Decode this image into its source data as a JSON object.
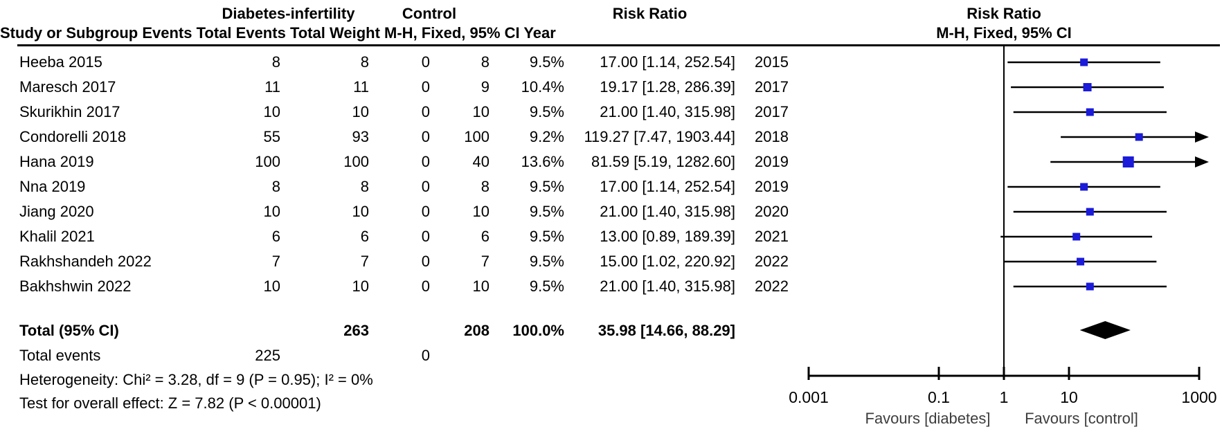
{
  "header": {
    "group_exp": "Diabetes-infertility",
    "group_ctrl": "Control",
    "study_col": "Study or Subgroup",
    "events_col": "Events",
    "total_col": "Total",
    "weight_col": "Weight",
    "effect_col_line1": "Risk Ratio",
    "effect_col_line2": "M-H, Fixed, 95% CI",
    "year_col": "Year",
    "plot_line1": "Risk Ratio",
    "plot_line2": "M-H, Fixed, 95% CI"
  },
  "footer": {
    "total_label": "Total (95% CI)",
    "total_events_label": "Total events",
    "heterogeneity": "Heterogeneity: Chi² = 3.28, df = 9 (P = 0.95); I² = 0%",
    "overall_effect": "Test for overall effect: Z = 7.82 (P < 0.00001)"
  },
  "totals_display": {
    "total_exp": "263",
    "total_ctrl": "208",
    "weight": "100.0%",
    "ci_label": "35.98 [14.66, 88.29]",
    "events_exp": "225",
    "events_ctrl": "0"
  },
  "colors": {
    "marker_blue": "#1b1bd9",
    "line_black": "#000000",
    "favours_text": "#3d3d3d"
  },
  "chart_data": {
    "type": "scatter",
    "subtype": "forest-plot-meta-analysis",
    "effect_measure": "Risk Ratio (M-H, Fixed, 95% CI)",
    "x_scale": "log10",
    "x_range": [
      0.001,
      1000
    ],
    "x_ticks": [
      "0.001",
      "0.1",
      "1",
      "10",
      "1000"
    ],
    "null_line": 1,
    "favours": [
      "Favours [diabetes]",
      "Favours [control]"
    ],
    "studies": [
      {
        "name": "Heeba 2015",
        "events_exp": "8",
        "total_exp": "8",
        "events_ctrl": "0",
        "total_ctrl": "8",
        "weight_pct": 9.5,
        "weight_label": "9.5%",
        "rr": 17.0,
        "ci_low": 1.14,
        "ci_high": 252.54,
        "ci_label": "17.00 [1.14, 252.54]",
        "year": "2015"
      },
      {
        "name": "Maresch 2017",
        "events_exp": "11",
        "total_exp": "11",
        "events_ctrl": "0",
        "total_ctrl": "9",
        "weight_pct": 10.4,
        "weight_label": "10.4%",
        "rr": 19.17,
        "ci_low": 1.28,
        "ci_high": 286.39,
        "ci_label": "19.17 [1.28, 286.39]",
        "year": "2017"
      },
      {
        "name": "Skurikhin 2017",
        "events_exp": "10",
        "total_exp": "10",
        "events_ctrl": "0",
        "total_ctrl": "10",
        "weight_pct": 9.5,
        "weight_label": "9.5%",
        "rr": 21.0,
        "ci_low": 1.4,
        "ci_high": 315.98,
        "ci_label": "21.00 [1.40, 315.98]",
        "year": "2017"
      },
      {
        "name": "Condorelli 2018",
        "events_exp": "55",
        "total_exp": "93",
        "events_ctrl": "0",
        "total_ctrl": "100",
        "weight_pct": 9.2,
        "weight_label": "9.2%",
        "rr": 119.27,
        "ci_low": 7.47,
        "ci_high": 1903.44,
        "ci_label": "119.27 [7.47, 1903.44]",
        "year": "2018"
      },
      {
        "name": "Hana 2019",
        "events_exp": "100",
        "total_exp": "100",
        "events_ctrl": "0",
        "total_ctrl": "40",
        "weight_pct": 13.6,
        "weight_label": "13.6%",
        "rr": 81.59,
        "ci_low": 5.19,
        "ci_high": 1282.6,
        "ci_label": "81.59 [5.19, 1282.60]",
        "year": "2019"
      },
      {
        "name": "Nna 2019",
        "events_exp": "8",
        "total_exp": "8",
        "events_ctrl": "0",
        "total_ctrl": "8",
        "weight_pct": 9.5,
        "weight_label": "9.5%",
        "rr": 17.0,
        "ci_low": 1.14,
        "ci_high": 252.54,
        "ci_label": "17.00 [1.14, 252.54]",
        "year": "2019"
      },
      {
        "name": "Jiang 2020",
        "events_exp": "10",
        "total_exp": "10",
        "events_ctrl": "0",
        "total_ctrl": "10",
        "weight_pct": 9.5,
        "weight_label": "9.5%",
        "rr": 21.0,
        "ci_low": 1.4,
        "ci_high": 315.98,
        "ci_label": "21.00 [1.40, 315.98]",
        "year": "2020"
      },
      {
        "name": "Khalil 2021",
        "events_exp": "6",
        "total_exp": "6",
        "events_ctrl": "0",
        "total_ctrl": "6",
        "weight_pct": 9.5,
        "weight_label": "9.5%",
        "rr": 13.0,
        "ci_low": 0.89,
        "ci_high": 189.39,
        "ci_label": "13.00 [0.89, 189.39]",
        "year": "2021"
      },
      {
        "name": "Rakhshandeh 2022",
        "events_exp": "7",
        "total_exp": "7",
        "events_ctrl": "0",
        "total_ctrl": "7",
        "weight_pct": 9.5,
        "weight_label": "9.5%",
        "rr": 15.0,
        "ci_low": 1.02,
        "ci_high": 220.92,
        "ci_label": "15.00 [1.02, 220.92]",
        "year": "2022"
      },
      {
        "name": "Bakhshwin 2022",
        "events_exp": "10",
        "total_exp": "10",
        "events_ctrl": "0",
        "total_ctrl": "10",
        "weight_pct": 9.5,
        "weight_label": "9.5%",
        "rr": 21.0,
        "ci_low": 1.4,
        "ci_high": 315.98,
        "ci_label": "21.00 [1.40, 315.98]",
        "year": "2022"
      }
    ],
    "total": {
      "rr": 35.98,
      "ci_low": 14.66,
      "ci_high": 88.29,
      "total_exp": 263,
      "total_ctrl": 208,
      "weight_pct": 100.0,
      "total_events_exp": 225,
      "total_events_ctrl": 0
    }
  }
}
